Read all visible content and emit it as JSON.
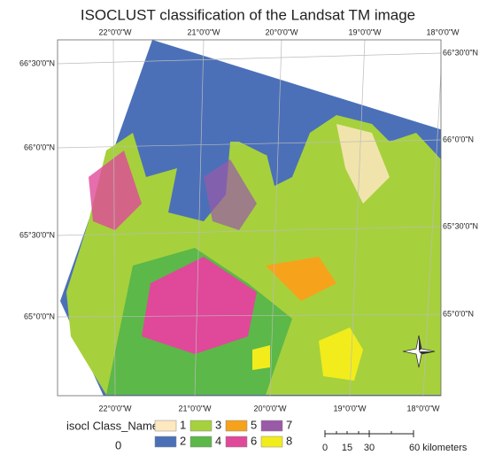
{
  "title": "ISOCLUST classification of the Landsat TM image",
  "longitude_labels": [
    "22°0'0\"W",
    "21°0'0\"W",
    "20°0'0\"W",
    "19°0'0\"W",
    "18°0'0\"W"
  ],
  "latitude_labels": [
    "66°30'0\"N",
    "66°0'0\"N",
    "65°30'0\"N",
    "65°0'0\"N"
  ],
  "legend": {
    "field": "isocl Class_Name",
    "value": "0",
    "classes": [
      {
        "label": "1",
        "color": "#fde8bf"
      },
      {
        "label": "2",
        "color": "#4b70b8"
      },
      {
        "label": "3",
        "color": "#a6d13c"
      },
      {
        "label": "4",
        "color": "#5cb848"
      },
      {
        "label": "5",
        "color": "#f7a21b"
      },
      {
        "label": "6",
        "color": "#e0489a"
      },
      {
        "label": "7",
        "color": "#9a5aa8"
      },
      {
        "label": "8",
        "color": "#f2ec1c"
      }
    ]
  },
  "scale_bar": {
    "labels": [
      "0",
      "15",
      "30",
      "60 kilometers"
    ]
  }
}
